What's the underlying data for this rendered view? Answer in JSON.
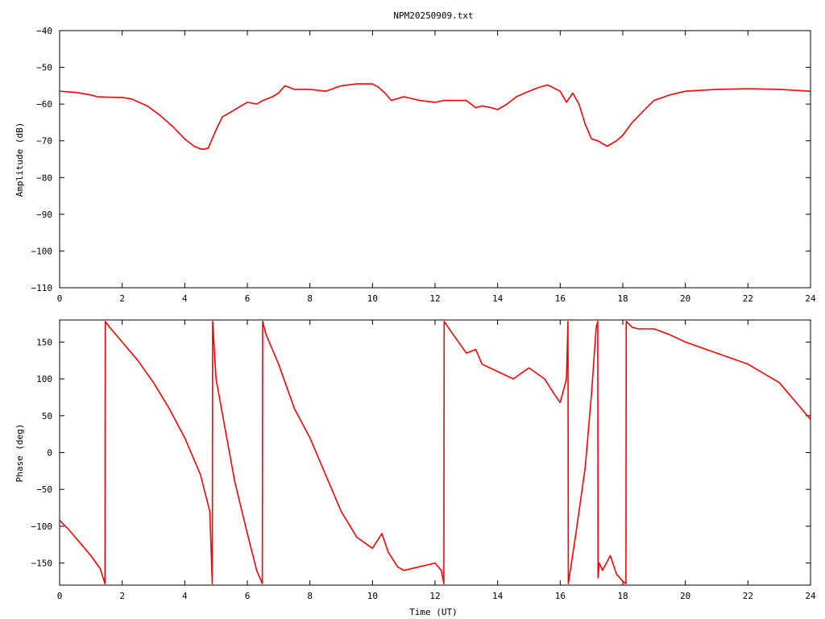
{
  "title": "NPM20250909.txt",
  "colors": {
    "series": "#ff0000",
    "axis": "#000000",
    "grid": "#000000",
    "background": "#ffffff"
  },
  "chart_data": [
    {
      "type": "line",
      "ylabel": "Amplitude (dB)",
      "xlabel": "",
      "xlim": [
        0,
        24
      ],
      "ylim": [
        -110,
        -40
      ],
      "xticks": [
        0,
        2,
        4,
        6,
        8,
        10,
        12,
        14,
        16,
        18,
        20,
        22,
        24
      ],
      "yticks": [
        -110,
        -100,
        -90,
        -80,
        -70,
        -60,
        -50,
        -40
      ],
      "grid": false,
      "series": [
        {
          "x": [
            0,
            0.5,
            1.0,
            1.2,
            1.5,
            2.0,
            2.3,
            2.8,
            3.2,
            3.6,
            4.0,
            4.3,
            4.5,
            4.6,
            4.75,
            4.85,
            5.0,
            5.2,
            5.5,
            5.8,
            6.0,
            6.3,
            6.5,
            6.8,
            7.0,
            7.2,
            7.5,
            8.0,
            8.5,
            9.0,
            9.5,
            10.0,
            10.2,
            10.4,
            10.6,
            10.8,
            11.0,
            11.5,
            12.0,
            12.3,
            12.7,
            13.0,
            13.3,
            13.5,
            13.8,
            14.0,
            14.3,
            14.6,
            15.0,
            15.3,
            15.6,
            16.0,
            16.2,
            16.4,
            16.6,
            16.8,
            17.0,
            17.2,
            17.5,
            17.8,
            18.0,
            18.3,
            18.7,
            19.0,
            19.5,
            20.0,
            21.0,
            22.0,
            23.0,
            24.0
          ],
          "values": [
            -56.5,
            -56.8,
            -57.5,
            -58.0,
            -58.1,
            -58.2,
            -58.6,
            -60.5,
            -63.0,
            -66.0,
            -69.5,
            -71.5,
            -72.2,
            -72.3,
            -72.0,
            -70.0,
            -67.0,
            -63.5,
            -62.0,
            -60.5,
            -59.5,
            -60.0,
            -59.0,
            -58.0,
            -57.0,
            -55.0,
            -56.0,
            -56.0,
            -56.5,
            -55.0,
            -54.5,
            -54.5,
            -55.5,
            -57.0,
            -59.0,
            -58.5,
            -58.0,
            -59.0,
            -59.5,
            -59.0,
            -59.0,
            -59.0,
            -61.0,
            -60.5,
            -61.0,
            -61.5,
            -60.0,
            -58.0,
            -56.5,
            -55.5,
            -54.8,
            -56.5,
            -59.5,
            -57.0,
            -60.0,
            -65.5,
            -69.5,
            -70.0,
            -71.5,
            -70.0,
            -68.5,
            -65.0,
            -61.5,
            -59.0,
            -57.5,
            -56.5,
            -56.0,
            -55.8,
            -56.0,
            -56.5
          ]
        }
      ]
    },
    {
      "type": "line",
      "ylabel": "Phase (deg)",
      "xlabel": "Time (UT)",
      "xlim": [
        0,
        24
      ],
      "ylim": [
        -180,
        180
      ],
      "xticks": [
        0,
        2,
        4,
        6,
        8,
        10,
        12,
        14,
        16,
        18,
        20,
        22,
        24
      ],
      "yticks": [
        -150,
        -100,
        -50,
        0,
        50,
        100,
        150
      ],
      "grid": false,
      "series": [
        {
          "x": [
            0,
            0.3,
            0.6,
            1.0,
            1.3,
            1.45,
            1.46,
            1.6,
            2.0,
            2.5,
            3.0,
            3.5,
            4.0,
            4.5,
            4.8,
            4.88,
            4.89,
            5.0,
            5.3,
            5.6,
            6.0,
            6.3,
            6.48,
            6.49,
            6.6,
            7.0,
            7.5,
            8.0,
            8.5,
            9.0,
            9.5,
            10.0,
            10.3,
            10.5,
            10.8,
            11.0,
            11.5,
            12.0,
            12.2,
            12.28,
            12.29,
            12.5,
            13.0,
            13.3,
            13.5,
            14.0,
            14.5,
            15.0,
            15.5,
            15.8,
            16.0,
            16.2,
            16.25,
            16.26,
            16.5,
            16.8,
            17.0,
            17.15,
            17.2,
            17.21,
            17.25,
            17.35,
            17.6,
            17.8,
            18.0,
            18.1,
            18.11,
            18.3,
            18.5,
            19.0,
            19.5,
            20.0,
            21.0,
            22.0,
            23.0,
            23.5,
            24.0
          ],
          "values": [
            -92,
            -105,
            -120,
            -140,
            -158,
            -178,
            178,
            170,
            150,
            125,
            95,
            60,
            20,
            -30,
            -80,
            -178,
            178,
            100,
            30,
            -40,
            -110,
            -160,
            -178,
            178,
            160,
            120,
            60,
            20,
            -30,
            -80,
            -115,
            -130,
            -110,
            -135,
            -155,
            -160,
            -155,
            -150,
            -160,
            -178,
            178,
            165,
            135,
            140,
            120,
            110,
            100,
            115,
            100,
            80,
            68,
            100,
            178,
            -178,
            -110,
            -20,
            80,
            170,
            178,
            -170,
            -150,
            -160,
            -140,
            -165,
            -175,
            -178,
            178,
            170,
            168,
            168,
            160,
            150,
            135,
            120,
            95,
            70,
            45
          ]
        }
      ]
    }
  ]
}
